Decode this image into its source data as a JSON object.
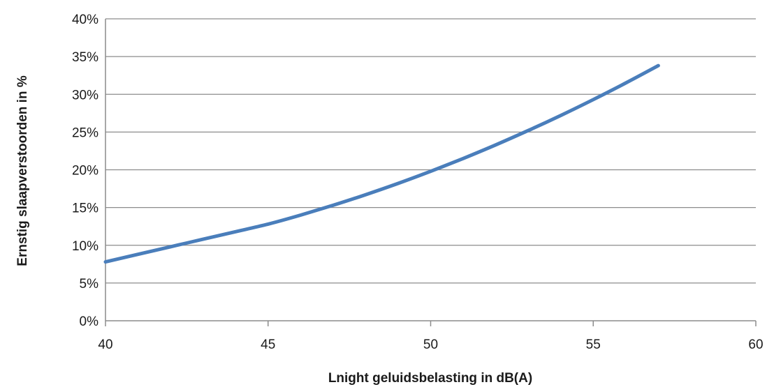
{
  "chart_data": {
    "type": "line",
    "xlabel": "Lnight geluidsbelasting in dB(A)",
    "ylabel": "Ernstig slaapverstoorden in %",
    "xlim": [
      40,
      60
    ],
    "ylim": [
      0,
      40
    ],
    "x_ticks": [
      {
        "value": 40,
        "label": "40"
      },
      {
        "value": 45,
        "label": "45"
      },
      {
        "value": 50,
        "label": "50"
      },
      {
        "value": 55,
        "label": "55"
      },
      {
        "value": 60,
        "label": "60"
      }
    ],
    "y_ticks": [
      {
        "value": 0,
        "label": "0%"
      },
      {
        "value": 5,
        "label": "5%"
      },
      {
        "value": 10,
        "label": "10%"
      },
      {
        "value": 15,
        "label": "15%"
      },
      {
        "value": 20,
        "label": "20%"
      },
      {
        "value": 25,
        "label": "25%"
      },
      {
        "value": 30,
        "label": "30%"
      },
      {
        "value": 35,
        "label": "35%"
      },
      {
        "value": 40,
        "label": "40%"
      }
    ],
    "grid": "horizontal",
    "legend": "none",
    "series": [
      {
        "color": "#4a7ebb",
        "x": [
          40,
          41,
          42,
          43,
          44,
          45,
          46,
          47,
          48,
          49,
          50,
          51,
          52,
          53,
          54,
          55,
          56,
          57
        ],
        "y": [
          7.8,
          8.8,
          9.8,
          10.8,
          11.8,
          12.8,
          14.0,
          15.3,
          16.7,
          18.2,
          19.8,
          21.5,
          23.3,
          25.2,
          27.2,
          29.3,
          31.5,
          33.8
        ]
      }
    ]
  }
}
